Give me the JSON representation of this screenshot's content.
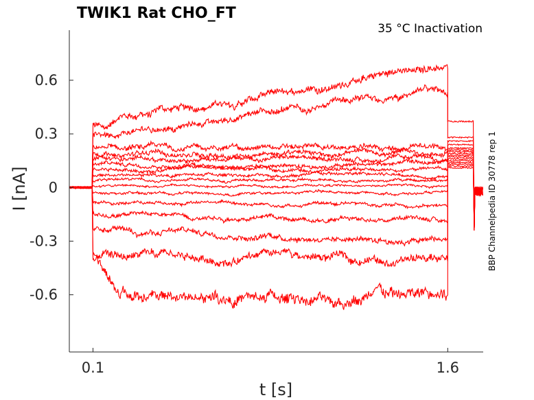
{
  "chart_data": {
    "type": "line",
    "title": "TWIK1  Rat  CHO_FT",
    "subtitle": "35 °C  Inactivation",
    "side_label": "BBP Channelpedia ID 30778 rep 1",
    "xlabel": "t [s]",
    "ylabel": "I [nA]",
    "x_ticks": [
      0.1,
      1.6
    ],
    "x_tick_labels": [
      "0.1",
      "1.6"
    ],
    "y_ticks": [
      0.6,
      0.3,
      0,
      -0.3,
      -0.6
    ],
    "y_tick_labels": [
      "0.6",
      "0.3",
      "0",
      "-0.3",
      "-0.6"
    ],
    "xlim": [
      0.0,
      1.75
    ],
    "ylim": [
      -0.92,
      0.88
    ],
    "grid": false,
    "line_color": "#ff0000",
    "pulse": {
      "start": 0.1,
      "end": 1.6
    },
    "series": [
      {
        "start": 0.35,
        "end": 0.69,
        "tail": 0.37
      },
      {
        "start": 0.29,
        "end": 0.54,
        "tail": 0.28
      },
      {
        "start": 0.22,
        "end": 0.22,
        "tail": 0.26
      },
      {
        "start": 0.19,
        "end": 0.19,
        "tail": 0.24
      },
      {
        "start": 0.16,
        "end": 0.16,
        "tail": 0.22
      },
      {
        "start": 0.13,
        "end": 0.13,
        "tail": 0.21
      },
      {
        "start": 0.1,
        "end": 0.1,
        "tail": 0.2
      },
      {
        "start": 0.07,
        "end": 0.07,
        "tail": 0.19
      },
      {
        "start": 0.04,
        "end": 0.04,
        "tail": 0.18
      },
      {
        "start": 0.01,
        "end": 0.01,
        "tail": 0.17
      },
      {
        "start": -0.03,
        "end": -0.03,
        "tail": 0.16
      },
      {
        "start": -0.08,
        "end": -0.1,
        "tail": 0.15
      },
      {
        "start": -0.15,
        "end": -0.18,
        "tail": 0.14
      },
      {
        "start": -0.24,
        "end": -0.29,
        "tail": 0.13
      },
      {
        "start": -0.4,
        "end": -0.4,
        "tail": 0.12
      },
      {
        "start": -0.62,
        "end": -0.62,
        "tail": 0.11
      }
    ]
  }
}
